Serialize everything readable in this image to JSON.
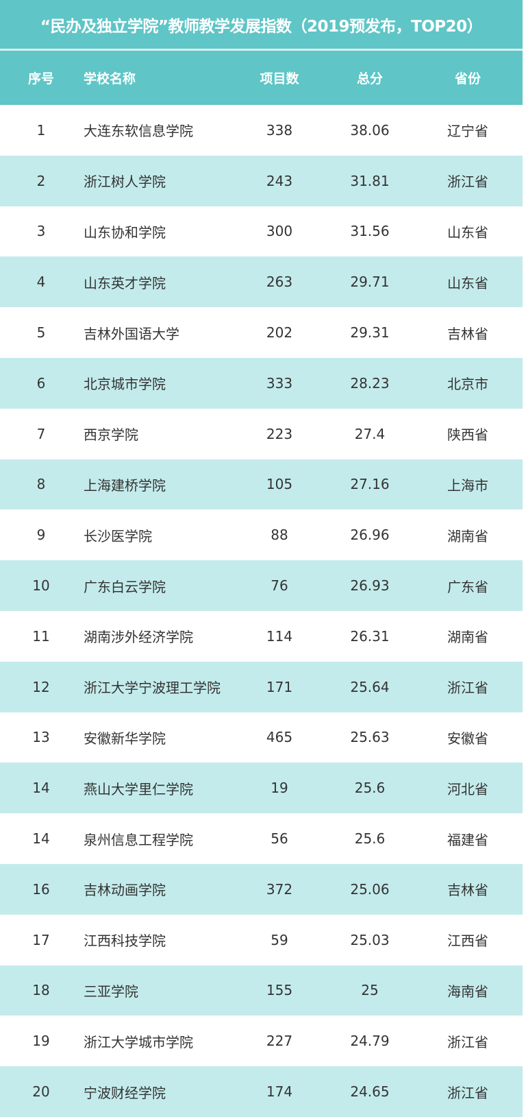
{
  "title": "“民办及独立学院”教师教学发展指数（2019预发布，TOP20）",
  "headers": [
    "序号",
    "学校名称",
    "项目数",
    "总分",
    "省份"
  ],
  "rows": [
    [
      "1",
      "大连东软信息学院",
      "338",
      "38.06",
      "辽宁省"
    ],
    [
      "2",
      "浙江树人学院",
      "243",
      "31.81",
      "浙江省"
    ],
    [
      "3",
      "山东协和学院",
      "300",
      "31.56",
      "山东省"
    ],
    [
      "4",
      "山东英才学院",
      "263",
      "29.71",
      "山东省"
    ],
    [
      "5",
      "吉林外国语大学",
      "202",
      "29.31",
      "吉林省"
    ],
    [
      "6",
      "北京城市学院",
      "333",
      "28.23",
      "北京市"
    ],
    [
      "7",
      "西京学院",
      "223",
      "27.4",
      "陕西省"
    ],
    [
      "8",
      "上海建桥学院",
      "105",
      "27.16",
      "上海市"
    ],
    [
      "9",
      "长沙医学院",
      "88",
      "26.96",
      "湖南省"
    ],
    [
      "10",
      "广东白云学院",
      "76",
      "26.93",
      "广东省"
    ],
    [
      "11",
      "湖南涉外经济学院",
      "114",
      "26.31",
      "湖南省"
    ],
    [
      "12",
      "浙江大学宁波理工学院",
      "171",
      "25.64",
      "浙江省"
    ],
    [
      "13",
      "安徽新华学院",
      "465",
      "25.63",
      "安徽省"
    ],
    [
      "14",
      "燕山大学里仁学院",
      "19",
      "25.6",
      "河北省"
    ],
    [
      "14",
      "泉州信息工程学院",
      "56",
      "25.6",
      "福建省"
    ],
    [
      "16",
      "吉林动画学院",
      "372",
      "25.06",
      "吉林省"
    ],
    [
      "17",
      "江西科技学院",
      "59",
      "25.03",
      "江西省"
    ],
    [
      "18",
      "三亚学院",
      "155",
      "25",
      "海南省"
    ],
    [
      "19",
      "浙江大学城市学院",
      "227",
      "24.79",
      "浙江省"
    ],
    [
      "20",
      "宁波财经学院",
      "174",
      "24.65",
      "浙江省"
    ]
  ],
  "colors": {
    "header": "#5fc5c6",
    "stripe": "#c4ebeb"
  }
}
